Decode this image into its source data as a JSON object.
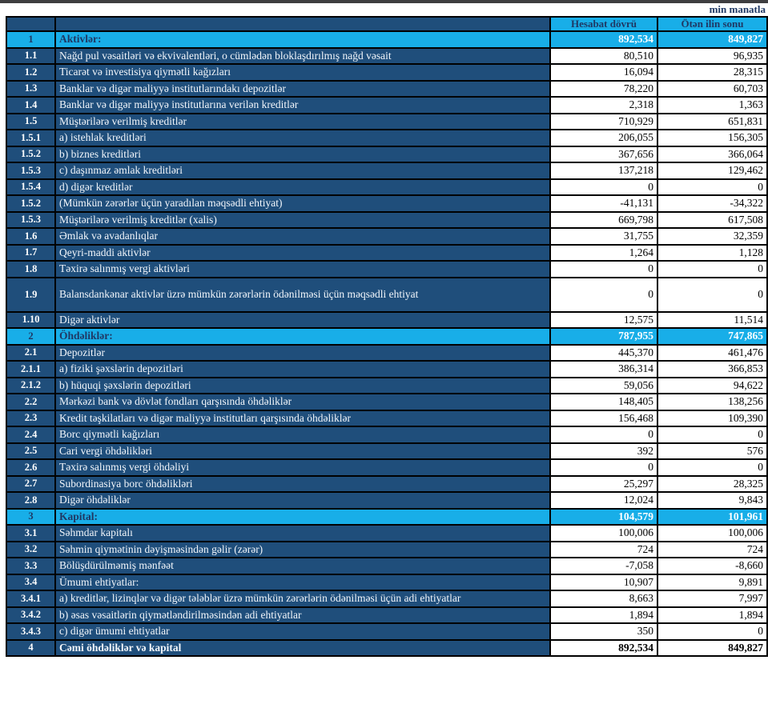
{
  "document": {
    "unit_label": "min manatla"
  },
  "colors": {
    "dark_blue": "#1F4E7B",
    "accent_cyan": "#18AEE8",
    "navy_text": "#1F3864",
    "top_bar": "#3E3E40",
    "gridline": "#000000"
  },
  "table": {
    "headers": {
      "num": "",
      "desc": "",
      "current": "Hesabat dövrü",
      "previous": "Ötən ilin sonu"
    },
    "rows": [
      {
        "num": "1",
        "label": "Aktivlər:",
        "current": "892,534",
        "previous": "849,827",
        "type": "section"
      },
      {
        "num": "1.1",
        "label": "Nağd pul vəsaitləri və  ekvivalentləri, o cümlədən bloklaşdırılmış nağd vəsait",
        "current": "80,510",
        "previous": "96,935",
        "type": "normal"
      },
      {
        "num": "1.2",
        "label": "Ticarət və investisiya qiymətli kağızları",
        "current": "16,094",
        "previous": "28,315",
        "type": "normal"
      },
      {
        "num": "1.3",
        "label": "Banklar və digər maliyyə institutlarındakı depozitlər",
        "current": "78,220",
        "previous": "60,703",
        "type": "normal"
      },
      {
        "num": "1.4",
        "label": "Banklar və digər maliyyə institutlarına verilən kreditlər",
        "current": "2,318",
        "previous": "1,363",
        "type": "normal"
      },
      {
        "num": "1.5",
        "label": "Müştərilərə verilmiş kreditlər",
        "current": "710,929",
        "previous": "651,831",
        "type": "normal"
      },
      {
        "num": "1.5.1",
        "label": "a) istehlak kreditləri",
        "current": "206,055",
        "previous": "156,305",
        "type": "normal"
      },
      {
        "num": "1.5.2",
        "label": "b) biznes kreditləri",
        "current": "367,656",
        "previous": "366,064",
        "type": "normal"
      },
      {
        "num": "1.5.3",
        "label": "c) daşınmaz əmlak kreditləri",
        "current": "137,218",
        "previous": "129,462",
        "type": "normal"
      },
      {
        "num": "1.5.4",
        "label": "d) digər kreditlər",
        "current": "0",
        "previous": "0",
        "type": "normal"
      },
      {
        "num": "1.5.2",
        "label": "(Mümkün zərərlər üçün yaradılan məqsədli ehtiyat)",
        "current": "-41,131",
        "previous": "-34,322",
        "type": "normal"
      },
      {
        "num": "1.5.3",
        "label": "Müştərilərə verilmiş kreditlər (xalis)",
        "current": "669,798",
        "previous": "617,508",
        "type": "normal"
      },
      {
        "num": "1.6",
        "label": "Əmlak və avadanlıqlar",
        "current": "31,755",
        "previous": "32,359",
        "type": "normal"
      },
      {
        "num": "1.7",
        "label": "Qeyri-maddi aktivlər",
        "current": "1,264",
        "previous": "1,128",
        "type": "normal"
      },
      {
        "num": "1.8",
        "label": "Təxirə salınmış vergi aktivləri",
        "current": "0",
        "previous": "0",
        "type": "normal"
      },
      {
        "num": "1.9",
        "label": "Balansdankənar aktivlər üzrə mümkün zərərlərin ödənilməsi üçün məqsədli ehtiyat",
        "current": "0",
        "previous": "0",
        "type": "tall"
      },
      {
        "num": "1.10",
        "label": "Digər aktivlər",
        "current": "12,575",
        "previous": "11,514",
        "type": "normal"
      },
      {
        "num": "2",
        "label": "Öhdəliklər:",
        "current": "787,955",
        "previous": "747,865",
        "type": "section"
      },
      {
        "num": "2.1",
        "label": "Depozitlər",
        "current": "445,370",
        "previous": "461,476",
        "type": "normal"
      },
      {
        "num": "2.1.1",
        "label": "a) fiziki şəxslərin depozitləri",
        "current": "386,314",
        "previous": "366,853",
        "type": "normal"
      },
      {
        "num": "2.1.2",
        "label": "b) hüquqi şəxslərin depozitləri",
        "current": "59,056",
        "previous": "94,622",
        "type": "normal"
      },
      {
        "num": "2.2",
        "label": "Mərkəzi bank və dövlət fondları qarşısında öhdəliklər",
        "current": "148,405",
        "previous": "138,256",
        "type": "normal"
      },
      {
        "num": "2.3",
        "label": "Kredit təşkilatları və digər maliyyə institutları qarşısında öhdəliklər",
        "current": "156,468",
        "previous": "109,390",
        "type": "normal"
      },
      {
        "num": "2.4",
        "label": "Borc qiymətli kağızları",
        "current": "0",
        "previous": "0",
        "type": "normal"
      },
      {
        "num": "2.5",
        "label": "Cari vergi öhdəlikləri",
        "current": "392",
        "previous": "576",
        "type": "normal"
      },
      {
        "num": "2.6",
        "label": "Təxirə salınmış vergi öhdəliyi",
        "current": "0",
        "previous": "0",
        "type": "normal"
      },
      {
        "num": "2.7",
        "label": "Subordinasiya borc öhdəlikləri",
        "current": "25,297",
        "previous": "28,325",
        "type": "normal"
      },
      {
        "num": "2.8",
        "label": "Digər öhdəliklər",
        "current": "12,024",
        "previous": "9,843",
        "type": "normal"
      },
      {
        "num": "3",
        "label": "Kapital:",
        "current": "104,579",
        "previous": "101,961",
        "type": "section"
      },
      {
        "num": "3.1",
        "label": "Səhmdar kapitalı",
        "current": "100,006",
        "previous": "100,006",
        "type": "normal"
      },
      {
        "num": "3.2",
        "label": "Səhmin qiymətinin dəyişməsindən gəlir (zərər)",
        "current": "724",
        "previous": "724",
        "type": "normal"
      },
      {
        "num": "3.3",
        "label": "Bölüşdürülməmiş mənfəət",
        "current": "-7,058",
        "previous": "-8,660",
        "type": "normal"
      },
      {
        "num": "3.4",
        "label": "Ümumi ehtiyatlar:",
        "current": "10,907",
        "previous": "9,891",
        "type": "normal"
      },
      {
        "num": "3.4.1",
        "label": "a) kreditlər, lizinqlər və digər tələblər üzrə mümkün zərərlərin ödənilməsi üçün adi ehtiyatlar",
        "current": "8,663",
        "previous": "7,997",
        "type": "normal"
      },
      {
        "num": "3.4.2",
        "label": "b) əsas vəsaitlərin qiymətləndirilməsindən adi ehtiyatlar",
        "current": "1,894",
        "previous": "1,894",
        "type": "normal"
      },
      {
        "num": "3.4.3",
        "label": "c) digər ümumi ehtiyatlar",
        "current": "350",
        "previous": "0",
        "type": "normal"
      },
      {
        "num": "4",
        "label": "Cəmi öhdəliklər və kapital",
        "current": "892,534",
        "previous": "849,827",
        "type": "total"
      }
    ]
  }
}
